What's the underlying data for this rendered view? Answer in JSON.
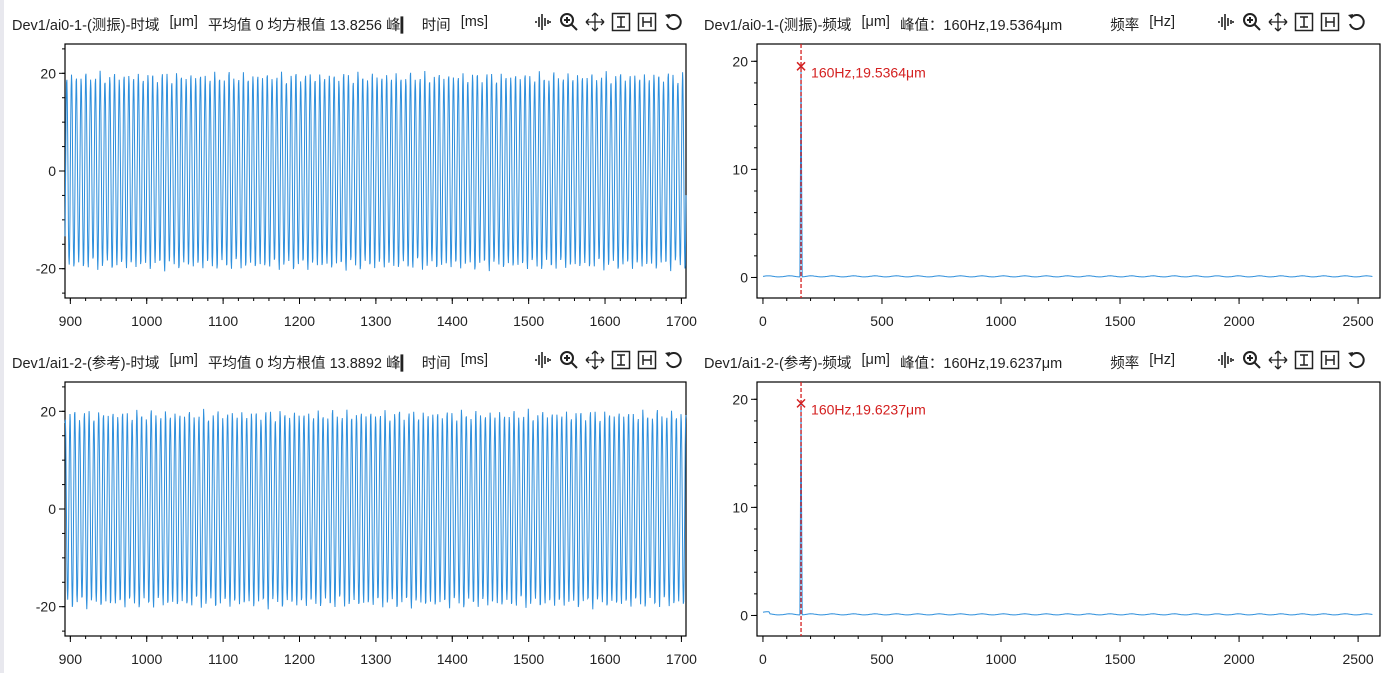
{
  "panels": [
    {
      "title": "Dev1/ai0-1-(测振)-时域",
      "unit": "[μm]",
      "stats": "平均值 0 均方根值 13.8256 峰▎",
      "xname": "时间",
      "xunit": "[ms]"
    },
    {
      "title": "Dev1/ai0-1-(测振)-频域",
      "unit": "[μm]",
      "stats": "峰值：160Hz,19.5364μm",
      "xname": "频率",
      "xunit": "[Hz]"
    },
    {
      "title": "Dev1/ai1-2-(参考)-时域",
      "unit": "[μm]",
      "stats": "平均值 0 均方根值 13.8892 峰▎",
      "xname": "时间",
      "xunit": "[ms]"
    },
    {
      "title": "Dev1/ai1-2-(参考)-频域",
      "unit": "[μm]",
      "stats": "峰值：160Hz,19.6237μm",
      "xname": "频率",
      "xunit": "[Hz]"
    }
  ],
  "tools": [
    "waveform-icon",
    "zoom-in-icon",
    "pan-icon",
    "cursor-i-icon",
    "cursor-h-icon",
    "reset-icon"
  ],
  "colors": {
    "trace": "#2e8fdc",
    "marker": "#d42020",
    "axis": "#000"
  },
  "chart_data": [
    {
      "type": "line",
      "title": "Dev1/ai0-1-(测振)-时域",
      "xlabel": "时间 [ms]",
      "ylabel": "[μm]",
      "xlim": [
        893,
        1706
      ],
      "ylim": [
        -26,
        26
      ],
      "xticks": [
        900,
        1000,
        1100,
        1200,
        1300,
        1400,
        1500,
        1600,
        1700
      ],
      "yticks": [
        -20,
        0,
        20
      ],
      "signal": {
        "frequency_hz": 160,
        "amplitude": 20,
        "mean": 0,
        "rms": 13.8256
      }
    },
    {
      "type": "line",
      "title": "Dev1/ai0-1-(测振)-频域",
      "xlabel": "频率 [Hz]",
      "ylabel": "[μm]",
      "xlim": [
        -25,
        2592
      ],
      "ylim": [
        -1.9,
        21.6
      ],
      "xticks": [
        0,
        500,
        1000,
        1500,
        2000,
        2500
      ],
      "yticks": [
        0,
        10,
        20
      ],
      "peak": {
        "x": 160,
        "y": 19.5364,
        "label": "160Hz,19.5364μm"
      },
      "noise_floor": 0.1
    },
    {
      "type": "line",
      "title": "Dev1/ai1-2-(参考)-时域",
      "xlabel": "时间 [ms]",
      "ylabel": "[μm]",
      "xlim": [
        893,
        1706
      ],
      "ylim": [
        -26,
        26
      ],
      "xticks": [
        900,
        1000,
        1100,
        1200,
        1300,
        1400,
        1500,
        1600,
        1700
      ],
      "yticks": [
        -20,
        0,
        20
      ],
      "signal": {
        "frequency_hz": 160,
        "amplitude": 20,
        "mean": 0,
        "rms": 13.8892
      }
    },
    {
      "type": "line",
      "title": "Dev1/ai1-2-(参考)-频域",
      "xlabel": "频率 [Hz]",
      "ylabel": "[μm]",
      "xlim": [
        -25,
        2592
      ],
      "ylim": [
        -1.9,
        21.6
      ],
      "xticks": [
        0,
        500,
        1000,
        1500,
        2000,
        2500
      ],
      "yticks": [
        0,
        10,
        20
      ],
      "peak": {
        "x": 160,
        "y": 19.6237,
        "label": "160Hz,19.6237μm"
      },
      "noise_floor": 0.1
    }
  ]
}
